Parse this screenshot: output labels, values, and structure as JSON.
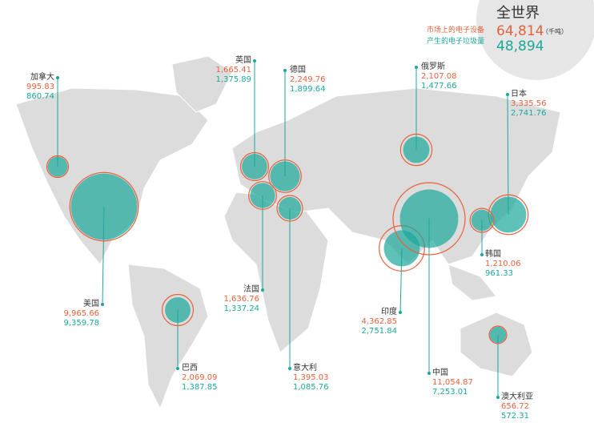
{
  "title": "全世界",
  "total": {
    "market": {
      "value": 64814,
      "label": "64,814"
    },
    "unit": "（千吨）",
    "waste": {
      "value": 48894,
      "label": "48,894"
    }
  },
  "legend": {
    "market": "市场上的电子设备",
    "waste": "产生的电子垃圾量"
  },
  "market_color": "#e8613a",
  "waste_color": "#1aa89a",
  "countries": [
    {
      "name": "加拿大",
      "market": {
        "value": 995.83,
        "label": "995.83"
      },
      "waste": {
        "value": 860.74,
        "label": "860.74"
      }
    },
    {
      "name": "美国",
      "market": {
        "value": 9965.66,
        "label": "9,965.66"
      },
      "waste": {
        "value": 9359.78,
        "label": "9,359.78"
      }
    },
    {
      "name": "巴西",
      "market": {
        "value": 2069.09,
        "label": "2,069.09"
      },
      "waste": {
        "value": 1387.85,
        "label": "1,387.85"
      }
    },
    {
      "name": "英国",
      "market": {
        "value": 1665.41,
        "label": "1,665.41"
      },
      "waste": {
        "value": 1375.89,
        "label": "1,375.89"
      }
    },
    {
      "name": "德国",
      "market": {
        "value": 2249.76,
        "label": "2,249.76"
      },
      "waste": {
        "value": 1899.64,
        "label": "1,899.64"
      }
    },
    {
      "name": "法国",
      "market": {
        "value": 1636.76,
        "label": "1,636.76"
      },
      "waste": {
        "value": 1337.24,
        "label": "1,337.24"
      }
    },
    {
      "name": "意大利",
      "market": {
        "value": 1395.03,
        "label": "1,395.03"
      },
      "waste": {
        "value": 1085.76,
        "label": "1,085.76"
      }
    },
    {
      "name": "俄罗斯",
      "market": {
        "value": 2107.08,
        "label": "2,107.08"
      },
      "waste": {
        "value": 1477.66,
        "label": "1,477.66"
      }
    },
    {
      "name": "日本",
      "market": {
        "value": 3335.56,
        "label": "3,335.56"
      },
      "waste": {
        "value": 2741.76,
        "label": "2,741.76"
      }
    },
    {
      "name": "韩国",
      "market": {
        "value": 1210.06,
        "label": "1,210.06"
      },
      "waste": {
        "value": 961.33,
        "label": "961.33"
      }
    },
    {
      "name": "印度",
      "market": {
        "value": 4362.85,
        "label": "4,362.85"
      },
      "waste": {
        "value": 2751.84,
        "label": "2,751.84"
      }
    },
    {
      "name": "中国",
      "market": {
        "value": 11054.87,
        "label": "11,054.87"
      },
      "waste": {
        "value": 7253.01,
        "label": "7,253.01"
      }
    },
    {
      "name": "澳大利亚",
      "market": {
        "value": 656.72,
        "label": "656.72"
      },
      "waste": {
        "value": 572.31,
        "label": "572.31"
      }
    }
  ]
}
